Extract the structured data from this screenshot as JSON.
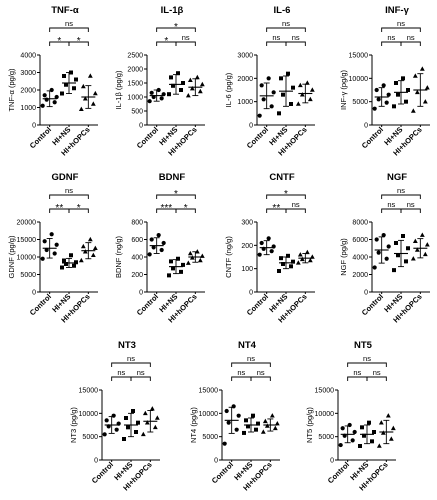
{
  "colors": {
    "ink": "#000000",
    "background": "#ffffff"
  },
  "groups": [
    "Control",
    "HI+NS",
    "HI+hOPCs"
  ],
  "chart_data": [
    {
      "type": "scatter",
      "title": "TNF-α",
      "ylabel": "TNF-α (pg/g)",
      "ylim": [
        0,
        4000
      ],
      "yticks": [
        0,
        1000,
        2000,
        3000,
        4000
      ],
      "categories": [
        "Control",
        "HI+NS",
        "HI+hOPCs"
      ],
      "groups": [
        {
          "mean": 1500,
          "sd": 450,
          "points": [
            1100,
            1300,
            1450,
            1600,
            1700,
            2000
          ]
        },
        {
          "mean": 2400,
          "sd": 600,
          "points": [
            1800,
            2100,
            2300,
            2600,
            2800,
            3000
          ]
        },
        {
          "mean": 1600,
          "sd": 650,
          "points": [
            900,
            1200,
            1500,
            1800,
            2200,
            2800
          ]
        }
      ],
      "brackets": [
        {
          "from": 0,
          "to": 2,
          "label": "ns",
          "level": 2
        },
        {
          "from": 0,
          "to": 1,
          "label": "*",
          "level": 1
        },
        {
          "from": 1,
          "to": 2,
          "label": "*",
          "level": 1
        }
      ]
    },
    {
      "type": "scatter",
      "title": "IL-1β",
      "ylabel": "IL-1β (pg/g)",
      "ylim": [
        0,
        2500
      ],
      "yticks": [
        0,
        500,
        1000,
        1500,
        2000,
        2500
      ],
      "categories": [
        "Control",
        "HI+NS",
        "HI+hOPCs"
      ],
      "groups": [
        {
          "mean": 1050,
          "sd": 200,
          "points": [
            850,
            950,
            1000,
            1100,
            1150,
            1250
          ]
        },
        {
          "mean": 1450,
          "sd": 350,
          "points": [
            1100,
            1250,
            1400,
            1500,
            1700,
            1850
          ]
        },
        {
          "mean": 1350,
          "sd": 300,
          "points": [
            1050,
            1200,
            1300,
            1450,
            1600,
            1700
          ]
        }
      ],
      "brackets": [
        {
          "from": 0,
          "to": 2,
          "label": "*",
          "level": 2
        },
        {
          "from": 0,
          "to": 1,
          "label": "*",
          "level": 1
        },
        {
          "from": 1,
          "to": 2,
          "label": "ns",
          "level": 1
        }
      ]
    },
    {
      "type": "scatter",
      "title": "IL-6",
      "ylabel": "IL-6 (pg/g)",
      "ylim": [
        0,
        3000
      ],
      "yticks": [
        0,
        1000,
        2000,
        3000
      ],
      "categories": [
        "Control",
        "HI+NS",
        "HI+hOPCs"
      ],
      "groups": [
        {
          "mean": 1250,
          "sd": 550,
          "points": [
            400,
            800,
            1100,
            1400,
            1700,
            2000
          ]
        },
        {
          "mean": 1450,
          "sd": 650,
          "points": [
            500,
            900,
            1300,
            1600,
            2000,
            2200
          ]
        },
        {
          "mean": 1350,
          "sd": 400,
          "points": [
            900,
            1100,
            1300,
            1500,
            1700,
            1800
          ]
        }
      ],
      "brackets": [
        {
          "from": 0,
          "to": 2,
          "label": "ns",
          "level": 2
        },
        {
          "from": 0,
          "to": 1,
          "label": "ns",
          "level": 1
        },
        {
          "from": 1,
          "to": 2,
          "label": "ns",
          "level": 1
        }
      ]
    },
    {
      "type": "scatter",
      "title": "INF-γ",
      "ylabel": "INF-γ (pg/g)",
      "ylim": [
        0,
        15000
      ],
      "yticks": [
        0,
        5000,
        10000,
        15000
      ],
      "categories": [
        "Control",
        "HI+NS",
        "HI+hOPCs"
      ],
      "groups": [
        {
          "mean": 6000,
          "sd": 2000,
          "points": [
            3500,
            4800,
            5500,
            6500,
            7500,
            8500
          ]
        },
        {
          "mean": 7000,
          "sd": 2500,
          "points": [
            4000,
            5000,
            6500,
            7500,
            9000,
            10000
          ]
        },
        {
          "mean": 7500,
          "sd": 3500,
          "points": [
            3000,
            5000,
            7000,
            8000,
            10500,
            12000
          ]
        }
      ],
      "brackets": [
        {
          "from": 0,
          "to": 2,
          "label": "ns",
          "level": 2
        },
        {
          "from": 0,
          "to": 1,
          "label": "ns",
          "level": 1
        },
        {
          "from": 1,
          "to": 2,
          "label": "ns",
          "level": 1
        }
      ]
    },
    {
      "type": "scatter",
      "title": "GDNF",
      "ylabel": "GDNF (pg/g)",
      "ylim": [
        0,
        20000
      ],
      "yticks": [
        0,
        5000,
        10000,
        15000,
        20000
      ],
      "categories": [
        "Control",
        "HI+NS",
        "HI+hOPCs"
      ],
      "groups": [
        {
          "mean": 12500,
          "sd": 2800,
          "points": [
            9500,
            11000,
            12000,
            13500,
            14500,
            16500
          ]
        },
        {
          "mean": 8300,
          "sd": 1300,
          "points": [
            7000,
            7500,
            8000,
            8500,
            9000,
            10500
          ]
        },
        {
          "mean": 11800,
          "sd": 2300,
          "points": [
            9000,
            10500,
            11500,
            12500,
            13000,
            15000
          ]
        }
      ],
      "brackets": [
        {
          "from": 0,
          "to": 2,
          "label": "ns",
          "level": 2
        },
        {
          "from": 0,
          "to": 1,
          "label": "**",
          "level": 1
        },
        {
          "from": 1,
          "to": 2,
          "label": "*",
          "level": 1
        }
      ]
    },
    {
      "type": "scatter",
      "title": "BDNF",
      "ylabel": "BDNF (ng/g)",
      "ylim": [
        0,
        800
      ],
      "yticks": [
        0,
        200,
        400,
        600,
        800
      ],
      "categories": [
        "Control",
        "HI+NS",
        "HI+hOPCs"
      ],
      "groups": [
        {
          "mean": 530,
          "sd": 90,
          "points": [
            430,
            480,
            510,
            560,
            600,
            650
          ]
        },
        {
          "mean": 290,
          "sd": 80,
          "points": [
            190,
            230,
            270,
            310,
            350,
            380
          ]
        },
        {
          "mean": 400,
          "sd": 60,
          "points": [
            330,
            360,
            390,
            410,
            440,
            460
          ]
        }
      ],
      "brackets": [
        {
          "from": 0,
          "to": 2,
          "label": "*",
          "level": 2
        },
        {
          "from": 0,
          "to": 1,
          "label": "***",
          "level": 1
        },
        {
          "from": 1,
          "to": 2,
          "label": "*",
          "level": 1
        }
      ]
    },
    {
      "type": "scatter",
      "title": "CNTF",
      "ylabel": "CNTF (ng/g)",
      "ylim": [
        0,
        300
      ],
      "yticks": [
        0,
        100,
        200,
        300
      ],
      "categories": [
        "Control",
        "HI+NS",
        "HI+hOPCs"
      ],
      "groups": [
        {
          "mean": 190,
          "sd": 30,
          "points": [
            160,
            175,
            185,
            195,
            210,
            230
          ]
        },
        {
          "mean": 125,
          "sd": 25,
          "points": [
            90,
            110,
            120,
            130,
            145,
            155
          ]
        },
        {
          "mean": 145,
          "sd": 20,
          "points": [
            125,
            135,
            140,
            150,
            160,
            170
          ]
        }
      ],
      "brackets": [
        {
          "from": 0,
          "to": 2,
          "label": "*",
          "level": 2
        },
        {
          "from": 0,
          "to": 1,
          "label": "**",
          "level": 1
        },
        {
          "from": 1,
          "to": 2,
          "label": "ns",
          "level": 1
        }
      ]
    },
    {
      "type": "scatter",
      "title": "NGF",
      "ylabel": "NGF (pg/g)",
      "ylim": [
        0,
        8000
      ],
      "yticks": [
        0,
        2000,
        4000,
        6000,
        8000
      ],
      "categories": [
        "Control",
        "HI+NS",
        "HI+hOPCs"
      ],
      "groups": [
        {
          "mean": 4800,
          "sd": 1500,
          "points": [
            2800,
            3800,
            4500,
            5200,
            6000,
            6500
          ]
        },
        {
          "mean": 4400,
          "sd": 1500,
          "points": [
            2500,
            3500,
            4200,
            5000,
            5600,
            6400
          ]
        },
        {
          "mean": 5000,
          "sd": 1100,
          "points": [
            3800,
            4300,
            4800,
            5400,
            5800,
            6500
          ]
        }
      ],
      "brackets": [
        {
          "from": 0,
          "to": 2,
          "label": "ns",
          "level": 2
        },
        {
          "from": 0,
          "to": 1,
          "label": "ns",
          "level": 1
        },
        {
          "from": 1,
          "to": 2,
          "label": "ns",
          "level": 1
        }
      ]
    },
    {
      "type": "scatter",
      "title": "NT3",
      "ylabel": "NT3 (pg/g)",
      "ylim": [
        0,
        15000
      ],
      "yticks": [
        0,
        5000,
        10000,
        15000
      ],
      "categories": [
        "Control",
        "HI+NS",
        "HI+hOPCs"
      ],
      "groups": [
        {
          "mean": 7500,
          "sd": 1800,
          "points": [
            5500,
            6500,
            7200,
            7800,
            8500,
            9500
          ]
        },
        {
          "mean": 7500,
          "sd": 2500,
          "points": [
            4500,
            6000,
            7000,
            8000,
            9000,
            10500
          ]
        },
        {
          "mean": 8300,
          "sd": 2300,
          "points": [
            5500,
            7000,
            8000,
            9000,
            10000,
            11000
          ]
        }
      ],
      "brackets": [
        {
          "from": 0,
          "to": 2,
          "label": "ns",
          "level": 2
        },
        {
          "from": 0,
          "to": 1,
          "label": "ns",
          "level": 1
        },
        {
          "from": 1,
          "to": 2,
          "label": "ns",
          "level": 1
        }
      ]
    },
    {
      "type": "scatter",
      "title": "NT4",
      "ylabel": "NT4 (pg/g)",
      "ylim": [
        0,
        15000
      ],
      "yticks": [
        0,
        5000,
        10000,
        15000
      ],
      "categories": [
        "Control",
        "HI+NS",
        "HI+hOPCs"
      ],
      "groups": [
        {
          "mean": 8500,
          "sd": 2800,
          "points": [
            3500,
            6500,
            8000,
            9500,
            10500,
            11500
          ]
        },
        {
          "mean": 7500,
          "sd": 1500,
          "points": [
            5800,
            6500,
            7200,
            7800,
            8500,
            9500
          ]
        },
        {
          "mean": 7500,
          "sd": 1300,
          "points": [
            6000,
            6800,
            7300,
            7800,
            8300,
            9500
          ]
        }
      ],
      "brackets": [
        {
          "from": 0,
          "to": 2,
          "label": "ns",
          "level": 2
        },
        {
          "from": 0,
          "to": 1,
          "label": "ns",
          "level": 1
        },
        {
          "from": 1,
          "to": 2,
          "label": "ns",
          "level": 1
        }
      ]
    },
    {
      "type": "scatter",
      "title": "NT5",
      "ylabel": "NT5 (pg/g)",
      "ylim": [
        0,
        15000
      ],
      "yticks": [
        0,
        5000,
        10000,
        15000
      ],
      "categories": [
        "Control",
        "HI+NS",
        "HI+hOPCs"
      ],
      "groups": [
        {
          "mean": 5500,
          "sd": 1800,
          "points": [
            3200,
            4200,
            5200,
            6000,
            6800,
            7500
          ]
        },
        {
          "mean": 5500,
          "sd": 2000,
          "points": [
            3000,
            4000,
            5200,
            6000,
            7000,
            8000
          ]
        },
        {
          "mean": 6000,
          "sd": 2500,
          "points": [
            3000,
            4500,
            5800,
            6800,
            8000,
            9500
          ]
        }
      ],
      "brackets": [
        {
          "from": 0,
          "to": 2,
          "label": "ns",
          "level": 2
        },
        {
          "from": 0,
          "to": 1,
          "label": "ns",
          "level": 1
        },
        {
          "from": 1,
          "to": 2,
          "label": "ns",
          "level": 1
        }
      ]
    }
  ]
}
